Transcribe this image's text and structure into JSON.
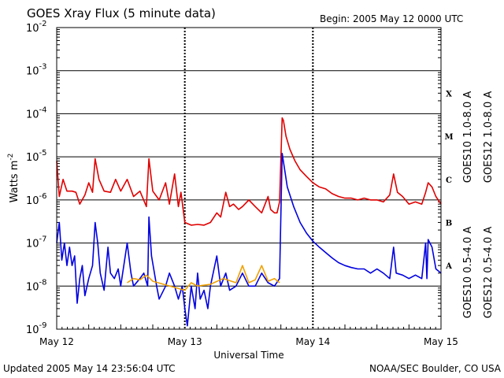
{
  "chart_data": {
    "type": "line",
    "title": "GOES Xray Flux (5 minute data)",
    "begin_label": "Begin:  2005 May 12 0000 UTC",
    "xlabel": "Universal Time",
    "ylabel": "Watts m",
    "ylabel_superscript": "-2",
    "yscale": "log",
    "ylim": [
      1e-09,
      0.01
    ],
    "xlim_days": [
      0,
      3
    ],
    "x_ticks": [
      {
        "day": 0,
        "label": "May 12"
      },
      {
        "day": 1,
        "label": "May 13"
      },
      {
        "day": 2,
        "label": "May 14"
      },
      {
        "day": 3,
        "label": "May 15"
      }
    ],
    "y_ticks": [
      {
        "exp": -2,
        "label": "-2"
      },
      {
        "exp": -3,
        "label": "-3"
      },
      {
        "exp": -4,
        "label": "-4"
      },
      {
        "exp": -5,
        "label": "-5"
      },
      {
        "exp": -6,
        "label": "-6"
      },
      {
        "exp": -7,
        "label": "-7"
      },
      {
        "exp": -8,
        "label": "-8"
      },
      {
        "exp": -9,
        "label": "-9"
      }
    ],
    "flare_classes": [
      {
        "label": "X",
        "value": 0.0003
      },
      {
        "label": "M",
        "value": 3e-05
      },
      {
        "label": "C",
        "value": 3e-06
      },
      {
        "label": "B",
        "value": 3e-07
      },
      {
        "label": "A",
        "value": 3e-08
      }
    ],
    "series": [
      {
        "name": "GOES12 1.0-8.0 A",
        "color": "#e00000",
        "points": [
          [
            0,
            8e-06
          ],
          [
            0.02,
            1.2e-06
          ],
          [
            0.05,
            3e-06
          ],
          [
            0.08,
            1.6e-06
          ],
          [
            0.12,
            1.6e-06
          ],
          [
            0.15,
            1.5e-06
          ],
          [
            0.18,
            8e-07
          ],
          [
            0.22,
            1.3e-06
          ],
          [
            0.25,
            2.5e-06
          ],
          [
            0.28,
            1.5e-06
          ],
          [
            0.3,
            9e-06
          ],
          [
            0.33,
            3e-06
          ],
          [
            0.37,
            1.6e-06
          ],
          [
            0.42,
            1.5e-06
          ],
          [
            0.46,
            3e-06
          ],
          [
            0.5,
            1.6e-06
          ],
          [
            0.55,
            3e-06
          ],
          [
            0.6,
            1.2e-06
          ],
          [
            0.65,
            1.6e-06
          ],
          [
            0.7,
            7e-07
          ],
          [
            0.72,
            9e-06
          ],
          [
            0.75,
            1.6e-06
          ],
          [
            0.8,
            1e-06
          ],
          [
            0.85,
            2.5e-06
          ],
          [
            0.88,
            8e-07
          ],
          [
            0.92,
            4e-06
          ],
          [
            0.95,
            7e-07
          ],
          [
            0.97,
            1.5e-06
          ],
          [
            1.0,
            3e-07
          ],
          [
            1.05,
            2.6e-07
          ],
          [
            1.1,
            2.7e-07
          ],
          [
            1.15,
            2.6e-07
          ],
          [
            1.2,
            3e-07
          ],
          [
            1.25,
            5e-07
          ],
          [
            1.28,
            4e-07
          ],
          [
            1.32,
            1.5e-06
          ],
          [
            1.35,
            7e-07
          ],
          [
            1.38,
            8e-07
          ],
          [
            1.42,
            6e-07
          ],
          [
            1.45,
            7e-07
          ],
          [
            1.5,
            1e-06
          ],
          [
            1.55,
            7e-07
          ],
          [
            1.6,
            5e-07
          ],
          [
            1.65,
            1.2e-06
          ],
          [
            1.67,
            6e-07
          ],
          [
            1.7,
            5e-07
          ],
          [
            1.72,
            5e-07
          ],
          [
            1.74,
            9e-07
          ],
          [
            1.76,
            8e-05
          ],
          [
            1.77,
            7e-05
          ],
          [
            1.79,
            3e-05
          ],
          [
            1.82,
            1.5e-05
          ],
          [
            1.86,
            8e-06
          ],
          [
            1.9,
            5e-06
          ],
          [
            1.95,
            3.5e-06
          ],
          [
            2.0,
            2.5e-06
          ],
          [
            2.05,
            2e-06
          ],
          [
            2.1,
            1.8e-06
          ],
          [
            2.15,
            1.4e-06
          ],
          [
            2.2,
            1.2e-06
          ],
          [
            2.25,
            1.1e-06
          ],
          [
            2.3,
            1.1e-06
          ],
          [
            2.35,
            1e-06
          ],
          [
            2.4,
            1.1e-06
          ],
          [
            2.45,
            1e-06
          ],
          [
            2.5,
            1e-06
          ],
          [
            2.55,
            9e-07
          ],
          [
            2.6,
            1.3e-06
          ],
          [
            2.63,
            4e-06
          ],
          [
            2.66,
            1.5e-06
          ],
          [
            2.7,
            1.2e-06
          ],
          [
            2.75,
            8e-07
          ],
          [
            2.8,
            9e-07
          ],
          [
            2.85,
            8e-07
          ],
          [
            2.88,
            1.5e-06
          ],
          [
            2.9,
            2.5e-06
          ],
          [
            2.93,
            2e-06
          ],
          [
            2.96,
            1.2e-06
          ],
          [
            3.0,
            8e-07
          ]
        ]
      },
      {
        "name": "GOES12 0.5-4.0 A",
        "color": "#0000e0",
        "points": [
          [
            0,
            1e-07
          ],
          [
            0.02,
            3e-07
          ],
          [
            0.04,
            4e-08
          ],
          [
            0.06,
            1e-07
          ],
          [
            0.08,
            3e-08
          ],
          [
            0.1,
            8e-08
          ],
          [
            0.12,
            3e-08
          ],
          [
            0.14,
            5e-08
          ],
          [
            0.16,
            4e-09
          ],
          [
            0.18,
            1.5e-08
          ],
          [
            0.2,
            3e-08
          ],
          [
            0.22,
            6e-09
          ],
          [
            0.25,
            1.5e-08
          ],
          [
            0.28,
            3e-08
          ],
          [
            0.3,
            3e-07
          ],
          [
            0.32,
            1e-07
          ],
          [
            0.34,
            2e-08
          ],
          [
            0.37,
            8e-09
          ],
          [
            0.4,
            8e-08
          ],
          [
            0.42,
            2e-08
          ],
          [
            0.45,
            1.5e-08
          ],
          [
            0.48,
            2.5e-08
          ],
          [
            0.5,
            1e-08
          ],
          [
            0.55,
            1e-07
          ],
          [
            0.58,
            2e-08
          ],
          [
            0.6,
            1e-08
          ],
          [
            0.65,
            1.5e-08
          ],
          [
            0.68,
            2e-08
          ],
          [
            0.71,
            1e-08
          ],
          [
            0.72,
            4e-07
          ],
          [
            0.74,
            5e-08
          ],
          [
            0.78,
            1e-08
          ],
          [
            0.8,
            5e-09
          ],
          [
            0.85,
            1e-08
          ],
          [
            0.88,
            2e-08
          ],
          [
            0.92,
            1e-08
          ],
          [
            0.95,
            5e-09
          ],
          [
            0.98,
            1e-08
          ],
          [
            1.0,
            3e-09
          ],
          [
            1.02,
            1.2e-09
          ],
          [
            1.05,
            1e-08
          ],
          [
            1.08,
            3e-09
          ],
          [
            1.1,
            2e-08
          ],
          [
            1.12,
            5e-09
          ],
          [
            1.15,
            8e-09
          ],
          [
            1.18,
            3e-09
          ],
          [
            1.2,
            1e-08
          ],
          [
            1.25,
            5e-08
          ],
          [
            1.28,
            1e-08
          ],
          [
            1.32,
            2e-08
          ],
          [
            1.35,
            8e-09
          ],
          [
            1.4,
            1e-08
          ],
          [
            1.45,
            2e-08
          ],
          [
            1.5,
            1e-08
          ],
          [
            1.55,
            1e-08
          ],
          [
            1.6,
            2e-08
          ],
          [
            1.65,
            1.2e-08
          ],
          [
            1.7,
            1e-08
          ],
          [
            1.74,
            1.5e-08
          ],
          [
            1.76,
            1.2e-05
          ],
          [
            1.78,
            5e-06
          ],
          [
            1.8,
            2e-06
          ],
          [
            1.85,
            7e-07
          ],
          [
            1.9,
            3e-07
          ],
          [
            1.95,
            1.7e-07
          ],
          [
            2.0,
            1.1e-07
          ],
          [
            2.05,
            8e-08
          ],
          [
            2.1,
            6e-08
          ],
          [
            2.15,
            4.5e-08
          ],
          [
            2.2,
            3.5e-08
          ],
          [
            2.25,
            3e-08
          ],
          [
            2.3,
            2.7e-08
          ],
          [
            2.35,
            2.5e-08
          ],
          [
            2.4,
            2.5e-08
          ],
          [
            2.45,
            2e-08
          ],
          [
            2.5,
            2.5e-08
          ],
          [
            2.55,
            2e-08
          ],
          [
            2.6,
            1.5e-08
          ],
          [
            2.63,
            8e-08
          ],
          [
            2.65,
            2e-08
          ],
          [
            2.7,
            1.8e-08
          ],
          [
            2.75,
            1.5e-08
          ],
          [
            2.8,
            1.8e-08
          ],
          [
            2.85,
            1.5e-08
          ],
          [
            2.88,
            1e-07
          ],
          [
            2.89,
            1.5e-08
          ],
          [
            2.9,
            1.2e-07
          ],
          [
            2.93,
            8e-08
          ],
          [
            2.96,
            2.5e-08
          ],
          [
            3.0,
            2e-08
          ]
        ]
      },
      {
        "name": "GOES10 0.5-4.0 A",
        "color": "#f0a000",
        "points": [
          [
            0.55,
            1.2e-08
          ],
          [
            0.6,
            1.5e-08
          ],
          [
            0.65,
            1.4e-08
          ],
          [
            0.7,
            1.8e-08
          ],
          [
            0.75,
            1.3e-08
          ],
          [
            1.0,
            8e-09
          ],
          [
            1.05,
            1.2e-08
          ],
          [
            1.1,
            1e-08
          ],
          [
            1.2,
            1.1e-08
          ],
          [
            1.3,
            1.5e-08
          ],
          [
            1.4,
            1.2e-08
          ],
          [
            1.45,
            3e-08
          ],
          [
            1.5,
            1.2e-08
          ],
          [
            1.55,
            1.4e-08
          ],
          [
            1.6,
            3e-08
          ],
          [
            1.65,
            1.3e-08
          ],
          [
            1.7,
            1.5e-08
          ],
          [
            1.74,
            1.2e-08
          ]
        ]
      }
    ],
    "legend_left": [
      {
        "text": "GOES10 1.0-8.0 A",
        "color": "#8000c0"
      },
      {
        "text": "GOES10 0.5-4.0 A",
        "color": "#f0a000"
      }
    ],
    "legend_right": [
      {
        "text": "GOES12 1.0-8.0 A",
        "color": "#e00000"
      },
      {
        "text": "GOES12 0.5-4.0 A",
        "color": "#0000e0"
      }
    ]
  },
  "footer": {
    "updated": "Updated 2005 May 14 23:56:04 UTC",
    "source": "NOAA/SEC Boulder, CO USA"
  }
}
